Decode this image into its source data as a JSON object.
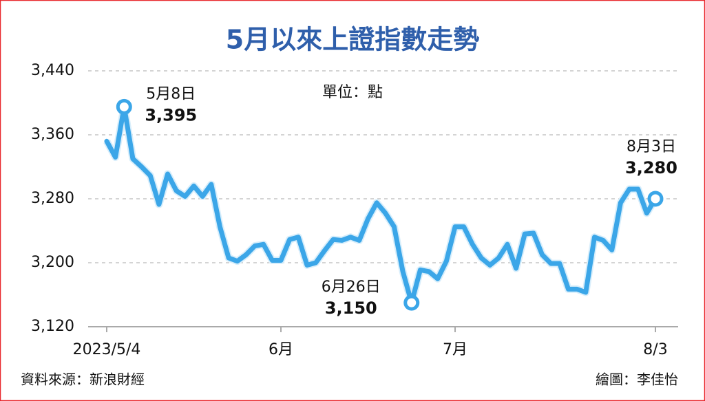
{
  "chart_data": {
    "type": "line",
    "title": "5月以來上證指數走勢",
    "unit": "單位：點",
    "source": "資料來源：新浪財經",
    "credit": "繪圖：李佳怡",
    "categories": [
      "2023/5/4",
      null,
      null,
      null,
      null,
      null,
      null,
      null,
      null,
      null,
      null,
      null,
      null,
      null,
      null,
      null,
      null,
      null,
      null,
      null,
      "6月",
      null,
      null,
      null,
      null,
      null,
      null,
      null,
      null,
      null,
      null,
      null,
      null,
      null,
      null,
      null,
      null,
      null,
      null,
      null,
      "7月",
      null,
      null,
      null,
      null,
      null,
      null,
      null,
      null,
      null,
      null,
      null,
      null,
      null,
      null,
      null,
      null,
      null,
      null,
      null,
      null,
      null,
      null,
      "8/3"
    ],
    "series": [
      {
        "name": "上證指數",
        "color": "#3ba6e8",
        "values": [
          3352,
          3332,
          3395,
          3330,
          3320,
          3309,
          3273,
          3311,
          3290,
          3283,
          3296,
          3283,
          3298,
          3245,
          3206,
          3202,
          3210,
          3221,
          3223,
          3203,
          3203,
          3229,
          3232,
          3197,
          3200,
          3215,
          3229,
          3228,
          3232,
          3228,
          3255,
          3275,
          3262,
          3245,
          3189,
          3150,
          3191,
          3189,
          3180,
          3202,
          3245,
          3245,
          3223,
          3206,
          3197,
          3206,
          3223,
          3193,
          3236,
          3237,
          3210,
          3199,
          3199,
          3167,
          3167,
          3163,
          3232,
          3228,
          3216,
          3275,
          3292,
          3292,
          3262,
          3280
        ],
        "value_labels": [
          null,
          null,
          "3,395",
          null,
          null,
          null,
          null,
          null,
          null,
          null,
          null,
          null,
          null,
          null,
          null,
          null,
          null,
          null,
          null,
          null,
          null,
          null,
          null,
          null,
          null,
          null,
          null,
          null,
          null,
          null,
          null,
          null,
          null,
          null,
          null,
          "3,150",
          null,
          null,
          null,
          null,
          null,
          null,
          null,
          null,
          null,
          null,
          null,
          null,
          null,
          null,
          null,
          null,
          null,
          null,
          null,
          null,
          null,
          null,
          null,
          null,
          null,
          null,
          null,
          "3,280"
        ],
        "point_labels": [
          null,
          null,
          "5月8日",
          null,
          null,
          null,
          null,
          null,
          null,
          null,
          null,
          null,
          null,
          null,
          null,
          null,
          null,
          null,
          null,
          null,
          null,
          null,
          null,
          null,
          null,
          null,
          null,
          null,
          null,
          null,
          null,
          null,
          null,
          null,
          null,
          "6月26日",
          null,
          null,
          null,
          null,
          null,
          null,
          null,
          null,
          null,
          null,
          null,
          null,
          null,
          null,
          null,
          null,
          null,
          null,
          null,
          null,
          null,
          null,
          null,
          null,
          null,
          null,
          null,
          "8月3日"
        ]
      }
    ],
    "ylim": [
      3120,
      3440
    ],
    "yticks": [
      {
        "value": 3120,
        "label": "3,120"
      },
      {
        "value": 3200,
        "label": "3,200"
      },
      {
        "value": 3280,
        "label": "3,280"
      },
      {
        "value": 3360,
        "label": "3,360"
      },
      {
        "value": 3440,
        "label": "3,440"
      }
    ],
    "grid": true
  }
}
